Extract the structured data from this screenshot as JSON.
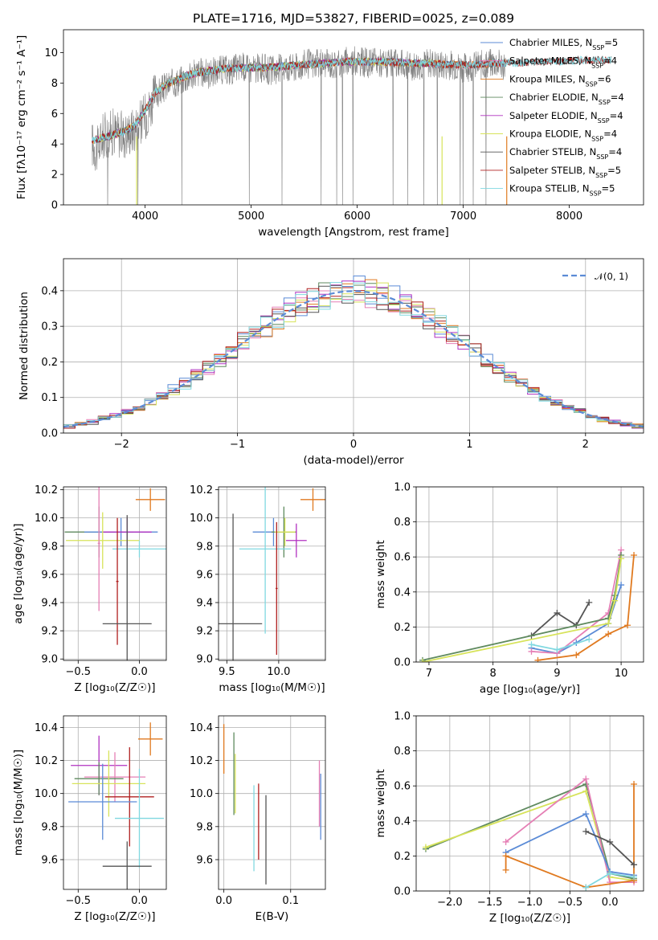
{
  "figure_title": "PLATE=1716, MJD=53827, FIBERID=0025, z=0.089",
  "colors": {
    "Chabrier MILES": "#5b8bd6",
    "Salpeter MILES": "#e57fb5",
    "Kroupa MILES": "#e07a20",
    "Chabrier ELODIE": "#5f8a5f",
    "Salpeter ELODIE": "#b030c0",
    "Kroupa ELODIE": "#d7e35a",
    "Chabrier STELIB": "#555555",
    "Salpeter STELIB": "#b02020",
    "Kroupa STELIB": "#80d8e0"
  },
  "chart_data": [
    {
      "id": "spectrum",
      "type": "line",
      "title": "PLATE=1716, MJD=53827, FIBERID=0025, z=0.089",
      "xlabel": "wavelength [Angstrom, rest frame]",
      "ylabel": "Flux [fλ10⁻¹⁷ erg cm⁻² s⁻¹ A⁻¹]",
      "xlim": [
        3230,
        8700
      ],
      "ylim": [
        0,
        11.5
      ],
      "xticks": [
        4000,
        5000,
        6000,
        7000,
        8000
      ],
      "yticks": [
        0,
        2,
        4,
        6,
        8,
        10
      ],
      "grid": false,
      "legend_position": "right",
      "data_series_name": "data",
      "data_color": "#808080",
      "data_x": [
        3500,
        3550,
        3600,
        3700,
        3800,
        3900,
        4000,
        4100,
        4200,
        4300,
        4400,
        4500,
        4600,
        4700,
        4800,
        4900,
        5000,
        5100,
        5200,
        5300,
        5400,
        5500,
        5600,
        5700,
        5800,
        5900,
        6000,
        6100,
        6200,
        6300,
        6400,
        6500,
        6600,
        6700,
        6800,
        6900,
        7000,
        7100,
        7200,
        7300,
        7400
      ],
      "data_y": [
        4.0,
        3.6,
        4.5,
        4.8,
        4.6,
        5.0,
        5.8,
        7.2,
        7.8,
        8.1,
        8.4,
        8.7,
        8.6,
        8.9,
        8.8,
        9.1,
        8.9,
        9.0,
        8.8,
        9.1,
        9.0,
        9.3,
        9.2,
        9.3,
        9.2,
        9.4,
        9.5,
        9.3,
        9.4,
        9.2,
        9.3,
        9.1,
        9.2,
        9.3,
        9.1,
        9.2,
        9.0,
        9.1,
        9.2,
        9.3,
        9.1
      ],
      "model_x": [
        3500,
        3600,
        3700,
        3800,
        3900,
        4000,
        4100,
        4200,
        4300,
        4400,
        4500,
        4700,
        4900,
        5100,
        5300,
        5500,
        5700,
        5900,
        6100,
        6300,
        6500,
        6700,
        6900,
        7100,
        7300,
        7500,
        7700,
        7900,
        8100,
        8300,
        8400
      ],
      "model_y": [
        4.2,
        4.4,
        4.6,
        4.8,
        5.2,
        6.2,
        7.4,
        7.9,
        8.2,
        8.5,
        8.7,
        8.9,
        9.0,
        9.0,
        9.1,
        9.2,
        9.3,
        9.4,
        9.4,
        9.4,
        9.3,
        9.3,
        9.2,
        9.2,
        9.3,
        9.3,
        9.4,
        9.4,
        9.5,
        9.5,
        9.5
      ],
      "series": [
        {
          "name": "Chabrier MILES, N_SSP=5",
          "legend_html": "Chabrier MILES, N<tspan baseline-shift='sub' font-size='8'>SSP</tspan>=5",
          "xmax": 7400
        },
        {
          "name": "Salpeter MILES, N_SSP=4",
          "legend_html": "Salpeter MILES, N<tspan baseline-shift='sub' font-size='8'>SSP</tspan>=4",
          "xmax": 7400
        },
        {
          "name": "Kroupa MILES, N_SSP=6",
          "legend_html": "Kroupa MILES, N<tspan baseline-shift='sub' font-size='8'>SSP</tspan>=6",
          "xmax": 7400
        },
        {
          "name": "Chabrier ELODIE, N_SSP=4",
          "legend_html": "Chabrier ELODIE, N<tspan baseline-shift='sub' font-size='8'>SSP</tspan>=4",
          "xmax": 6800
        },
        {
          "name": "Salpeter ELODIE, N_SSP=4",
          "legend_html": "Salpeter ELODIE, N<tspan baseline-shift='sub' font-size='8'>SSP</tspan>=4",
          "xmax": 6800
        },
        {
          "name": "Kroupa ELODIE, N_SSP=4",
          "legend_html": "Kroupa ELODIE, N<tspan baseline-shift='sub' font-size='8'>SSP</tspan>=4",
          "xmax": 6800
        },
        {
          "name": "Chabrier STELIB, N_SSP=4",
          "legend_html": "Chabrier STELIB, N<tspan baseline-shift='sub' font-size='8'>SSP</tspan>=4",
          "xmax": 8400
        },
        {
          "name": "Salpeter STELIB, N_SSP=5",
          "legend_html": "Salpeter STELIB, N<tspan baseline-shift='sub' font-size='8'>SSP</tspan>=5",
          "xmax": 8400
        },
        {
          "name": "Kroupa STELIB, N_SSP=5",
          "legend_html": "Kroupa STELIB, N<tspan baseline-shift='sub' font-size='8'>SSP</tspan>=5",
          "xmax": 8400
        }
      ]
    },
    {
      "id": "residuals",
      "type": "line",
      "xlabel": "(data-model)/error",
      "ylabel": "Normed distribution",
      "xlim": [
        -2.5,
        2.5
      ],
      "ylim": [
        0,
        0.49
      ],
      "xticks": [
        -2,
        -1,
        0,
        1,
        2
      ],
      "ytick_values": [
        0.0,
        0.1,
        0.2,
        0.3,
        0.4
      ],
      "ytick_labels": [
        "0.0",
        "0.1",
        "0.2",
        "0.3",
        "0.4"
      ],
      "xtick_labels": [
        "−2",
        "−1",
        "0",
        "1",
        "2"
      ],
      "grid": true,
      "legend_position": "top-right",
      "gaussian_label": "𝒩(0, 1)",
      "gaussian_color": "#5b8bd6",
      "bin_width": 0.1,
      "bin_start": -2.5
    },
    {
      "id": "age-vs-Z",
      "type": "scatter",
      "xlabel": "Z [log₁₀(Z/Z☉)]",
      "ylabel": "age  [log₁₀(age/yr)]",
      "xlim": [
        -0.62,
        0.22
      ],
      "ylim": [
        8.99,
        10.22
      ],
      "xticks": [
        -0.5,
        0.0
      ],
      "xtick_labels": [
        "−0.5",
        "0.0"
      ],
      "yticks": [
        9.0,
        9.2,
        9.4,
        9.6,
        9.8,
        10.0,
        10.2
      ],
      "ytick_labels": [
        "9.0",
        "9.2",
        "9.4",
        "9.6",
        "9.8",
        "10.0",
        "10.2"
      ],
      "grid": true,
      "points": [
        {
          "series": "Kroupa MILES",
          "x": 0.09,
          "y": 10.13,
          "xerr": 0.12,
          "yerr": 0.08
        },
        {
          "series": "Chabrier ELODIE",
          "x": -0.33,
          "y": 9.9,
          "xerr": 0.28,
          "yerr": 0.18
        },
        {
          "series": "Chabrier MILES",
          "x": -0.15,
          "y": 9.9,
          "xerr": 0.3,
          "yerr": 0.1
        },
        {
          "series": "Salpeter ELODIE",
          "x": -0.1,
          "y": 9.9,
          "xerr": 0.2,
          "yerr": 0.1
        },
        {
          "series": "Kroupa ELODIE",
          "x": -0.3,
          "y": 9.84,
          "xerr": 0.3,
          "yerr": 0.2
        },
        {
          "series": "Salpeter MILES",
          "x": -0.33,
          "y": 9.82,
          "xerr": 0.01,
          "yerr": 0.48
        },
        {
          "series": "Kroupa STELIB",
          "x": 0.0,
          "y": 9.78,
          "xerr": 0.22,
          "yerr": 0.06
        },
        {
          "series": "Salpeter STELIB",
          "x": -0.18,
          "y": 9.55,
          "xerr": 0.01,
          "yerr": 0.45
        },
        {
          "series": "Chabrier STELIB",
          "x": -0.1,
          "y": 9.25,
          "xerr": 0.2,
          "yerr": 0.77
        }
      ]
    },
    {
      "id": "age-vs-mass",
      "type": "scatter",
      "xlabel": "mass [log₁₀(M/M☉)]",
      "ylabel": "",
      "xlim": [
        9.42,
        10.45
      ],
      "ylim": [
        8.99,
        10.22
      ],
      "xticks": [
        9.5,
        10.0
      ],
      "xtick_labels": [
        "9.5",
        "10.0"
      ],
      "yticks": [
        9.0,
        9.2,
        9.4,
        9.6,
        9.8,
        10.0,
        10.2
      ],
      "ytick_labels": [
        "9.0",
        "9.2",
        "9.4",
        "9.6",
        "9.8",
        "10.0",
        "10.2"
      ],
      "grid": true,
      "points": [
        {
          "series": "Kroupa MILES",
          "x": 10.33,
          "y": 10.13,
          "xerr": 0.12,
          "yerr": 0.08
        },
        {
          "series": "Chabrier MILES",
          "x": 9.95,
          "y": 9.9,
          "xerr": 0.2,
          "yerr": 0.1
        },
        {
          "series": "Chabrier ELODIE",
          "x": 10.05,
          "y": 9.9,
          "xerr": 0.12,
          "yerr": 0.18
        },
        {
          "series": "Salpeter ELODIE",
          "x": 10.17,
          "y": 9.84,
          "xerr": 0.1,
          "yerr": 0.12
        },
        {
          "series": "Kroupa ELODIE",
          "x": 10.06,
          "y": 9.9,
          "xerr": 0.1,
          "yerr": 0.1
        },
        {
          "series": "Kroupa STELIB",
          "x": 9.87,
          "y": 9.78,
          "xerr": 0.25,
          "yerr": 0.6
        },
        {
          "series": "Salpeter STELIB",
          "x": 9.98,
          "y": 9.5,
          "xerr": 0.01,
          "yerr": 0.47
        },
        {
          "series": "Chabrier STELIB",
          "x": 9.56,
          "y": 9.25,
          "xerr": 0.28,
          "yerr": 0.78
        }
      ]
    },
    {
      "id": "massweight-vs-age",
      "type": "line",
      "xlabel": "age  [log₁₀(age/yr)]",
      "ylabel": "mass weight",
      "xlim": [
        6.8,
        10.35
      ],
      "ylim": [
        0,
        1.0
      ],
      "xticks": [
        7,
        8,
        9,
        10
      ],
      "yticks": [
        0.0,
        0.2,
        0.4,
        0.6,
        0.8,
        1.0
      ],
      "ytick_labels": [
        "0.0",
        "0.2",
        "0.4",
        "0.6",
        "0.8",
        "1.0"
      ],
      "grid": true,
      "series": [
        {
          "name": "Chabrier STELIB",
          "x": [
            8.6,
            9.0,
            9.3,
            9.5
          ],
          "y": [
            0.15,
            0.28,
            0.21,
            0.34
          ]
        },
        {
          "name": "Kroupa MILES",
          "x": [
            8.7,
            9.3,
            9.8,
            10.1,
            10.2
          ],
          "y": [
            0.01,
            0.04,
            0.16,
            0.21,
            0.61
          ]
        },
        {
          "name": "Chabrier MILES",
          "x": [
            8.6,
            9.0,
            9.3,
            9.8,
            10.0
          ],
          "y": [
            0.08,
            0.05,
            0.11,
            0.22,
            0.44
          ]
        },
        {
          "name": "Salpeter MILES",
          "x": [
            8.6,
            9.0,
            9.8,
            10.0
          ],
          "y": [
            0.06,
            0.05,
            0.28,
            0.64
          ]
        },
        {
          "name": "Chabrier ELODIE",
          "x": [
            6.9,
            9.8,
            9.9,
            10.0
          ],
          "y": [
            0.01,
            0.25,
            0.38,
            0.61
          ]
        },
        {
          "name": "Kroupa ELODIE",
          "x": [
            6.9,
            9.8,
            9.9,
            10.0
          ],
          "y": [
            0.0,
            0.22,
            0.35,
            0.59
          ]
        },
        {
          "name": "Kroupa STELIB",
          "x": [
            8.6,
            9.0,
            9.5
          ],
          "y": [
            0.1,
            0.07,
            0.13
          ]
        }
      ]
    },
    {
      "id": "mass-vs-Z",
      "type": "scatter",
      "xlabel": "Z [log₁₀(Z/Z☉)]",
      "ylabel": "mass [log₁₀(M/M☉)]",
      "xlim": [
        -0.62,
        0.22
      ],
      "ylim": [
        9.42,
        10.47
      ],
      "xticks": [
        -0.5,
        0.0
      ],
      "xtick_labels": [
        "−0.5",
        "0.0"
      ],
      "yticks": [
        9.6,
        9.8,
        10.0,
        10.2,
        10.4
      ],
      "ytick_labels": [
        "9.6",
        "9.8",
        "10.0",
        "10.2",
        "10.4"
      ],
      "grid": true,
      "points": [
        {
          "series": "Kroupa MILES",
          "x": 0.09,
          "y": 10.33,
          "xerr": 0.1,
          "yerr": 0.1
        },
        {
          "series": "Salpeter ELODIE",
          "x": -0.33,
          "y": 10.17,
          "xerr": 0.23,
          "yerr": 0.18
        },
        {
          "series": "Salpeter MILES",
          "x": -0.2,
          "y": 10.1,
          "xerr": 0.25,
          "yerr": 0.15
        },
        {
          "series": "Chabrier ELODIE",
          "x": -0.33,
          "y": 10.09,
          "xerr": 0.2,
          "yerr": 0.1
        },
        {
          "series": "Kroupa ELODIE",
          "x": -0.25,
          "y": 10.06,
          "xerr": 0.3,
          "yerr": 0.2
        },
        {
          "series": "Salpeter STELIB",
          "x": -0.08,
          "y": 9.98,
          "xerr": 0.2,
          "yerr": 0.3
        },
        {
          "series": "Chabrier MILES",
          "x": -0.3,
          "y": 9.95,
          "xerr": 0.28,
          "yerr": 0.23
        },
        {
          "series": "Kroupa STELIB",
          "x": 0.0,
          "y": 9.85,
          "xerr": 0.2,
          "yerr": 0.3
        },
        {
          "series": "Chabrier STELIB",
          "x": -0.1,
          "y": 9.56,
          "xerr": 0.2,
          "yerr": 0.15
        }
      ]
    },
    {
      "id": "mass-vs-ebv",
      "type": "scatter",
      "xlabel": "E(B-V)",
      "ylabel": "",
      "xlim": [
        -0.008,
        0.152
      ],
      "ylim": [
        9.42,
        10.47
      ],
      "xticks": [
        0.0,
        0.1
      ],
      "xtick_labels": [
        "0.0",
        "0.1"
      ],
      "yticks": [
        9.6,
        9.8,
        10.0,
        10.2,
        10.4
      ],
      "ytick_labels": [
        "9.6",
        "9.8",
        "10.0",
        "10.2",
        "10.4"
      ],
      "grid": true,
      "points": [
        {
          "series": "Kroupa MILES",
          "x": 0.0,
          "y": 10.27,
          "xerr": 0.0,
          "yerr": 0.15
        },
        {
          "series": "Chabrier ELODIE",
          "x": 0.015,
          "y": 10.12,
          "xerr": 0.0,
          "yerr": 0.25
        },
        {
          "series": "Kroupa ELODIE",
          "x": 0.017,
          "y": 10.06,
          "xerr": 0.0,
          "yerr": 0.18
        },
        {
          "series": "Kroupa STELIB",
          "x": 0.045,
          "y": 9.79,
          "xerr": 0.0,
          "yerr": 0.26
        },
        {
          "series": "Salpeter STELIB",
          "x": 0.052,
          "y": 9.83,
          "xerr": 0.0,
          "yerr": 0.23
        },
        {
          "series": "Chabrier STELIB",
          "x": 0.063,
          "y": 9.72,
          "xerr": 0.0,
          "yerr": 0.27
        },
        {
          "series": "Salpeter MILES",
          "x": 0.143,
          "y": 10.0,
          "xerr": 0.0,
          "yerr": 0.2
        },
        {
          "series": "Chabrier MILES",
          "x": 0.145,
          "y": 9.92,
          "xerr": 0.0,
          "yerr": 0.2
        }
      ]
    },
    {
      "id": "massweight-vs-Z",
      "type": "line",
      "xlabel": "Z [log₁₀(Z/Z☉)]",
      "ylabel": "mass weight",
      "xlim": [
        -2.42,
        0.42
      ],
      "ylim": [
        0,
        1.0
      ],
      "xticks": [
        -2.0,
        -1.5,
        -1.0,
        -0.5,
        0.0
      ],
      "xtick_labels": [
        "−2.0",
        "−1.5",
        "−1.0",
        "−0.5",
        "0.0"
      ],
      "yticks": [
        0.0,
        0.2,
        0.4,
        0.6,
        0.8,
        1.0
      ],
      "ytick_labels": [
        "0.0",
        "0.2",
        "0.4",
        "0.6",
        "0.8",
        "1.0"
      ],
      "grid": true,
      "series": [
        {
          "name": "Chabrier ELODIE",
          "x": [
            -2.3,
            -0.3,
            0.0,
            0.3
          ],
          "y": [
            0.24,
            0.61,
            0.1,
            0.07
          ]
        },
        {
          "name": "Kroupa ELODIE",
          "x": [
            -2.3,
            -0.3,
            0.0,
            0.3
          ],
          "y": [
            0.25,
            0.57,
            0.08,
            0.06
          ]
        },
        {
          "name": "Salpeter MILES",
          "x": [
            -1.3,
            -0.3,
            0.0,
            0.3
          ],
          "y": [
            0.28,
            0.64,
            0.05,
            0.05
          ]
        },
        {
          "name": "Chabrier MILES",
          "x": [
            -1.3,
            -0.3,
            0.0,
            0.3
          ],
          "y": [
            0.22,
            0.44,
            0.11,
            0.09
          ]
        },
        {
          "name": "Kroupa MILES",
          "x": [
            -1.3,
            -1.3,
            -0.3,
            0.3,
            0.3
          ],
          "y": [
            0.12,
            0.2,
            0.02,
            0.06,
            0.61
          ]
        },
        {
          "name": "Chabrier STELIB",
          "x": [
            -0.3,
            0.0,
            0.3
          ],
          "y": [
            0.34,
            0.28,
            0.15
          ]
        },
        {
          "name": "Kroupa STELIB",
          "x": [
            -0.3,
            0.0,
            0.3
          ],
          "y": [
            0.02,
            0.1,
            0.08
          ]
        }
      ]
    }
  ]
}
